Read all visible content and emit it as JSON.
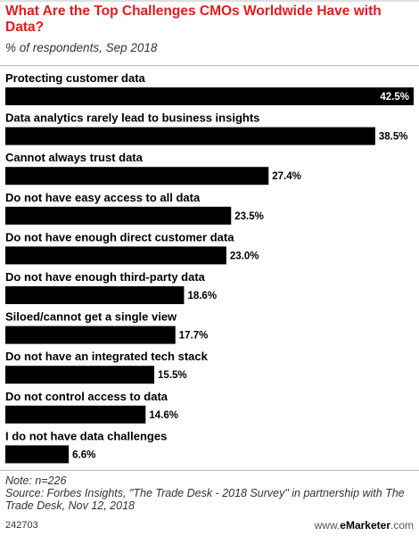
{
  "header": {
    "title": "What Are the Top Challenges CMOs Worldwide Have with Data?",
    "subtitle": "% of respondents, Sep 2018"
  },
  "chart_data": {
    "type": "bar",
    "orientation": "horizontal",
    "title": "What Are the Top Challenges CMOs Worldwide Have with Data?",
    "subtitle": "% of respondents, Sep 2018",
    "categories": [
      "Protecting customer data",
      "Data analytics rarely lead to business insights",
      "Cannot always trust data",
      "Do not have easy access to all data",
      "Do not have enough direct customer data",
      "Do not have enough third-party data",
      "Siloed/cannot get a single view",
      "Do not have an integrated tech stack",
      "Do not control access to data",
      "I do not have data challenges"
    ],
    "values": [
      42.5,
      38.5,
      27.4,
      23.5,
      23.0,
      18.6,
      17.7,
      15.5,
      14.6,
      6.6
    ],
    "value_labels": [
      "42.5%",
      "38.5%",
      "27.4%",
      "23.5%",
      "23.0%",
      "18.6%",
      "17.7%",
      "15.5%",
      "14.6%",
      "6.6%"
    ],
    "xlim": [
      0,
      42.5
    ],
    "grid": false,
    "legend": "none",
    "colors": {
      "bar": "#000000",
      "title": "#e41c1c"
    }
  },
  "footer": {
    "note": "Note: n=226",
    "source": "Source: Forbes Insights, \"The Trade Desk - 2018 Survey\" in partnership with The Trade Desk, Nov 12, 2018",
    "chart_id": "242703",
    "brand_prefix": "www.",
    "brand_name": "eMarketer",
    "brand_suffix": ".com"
  }
}
